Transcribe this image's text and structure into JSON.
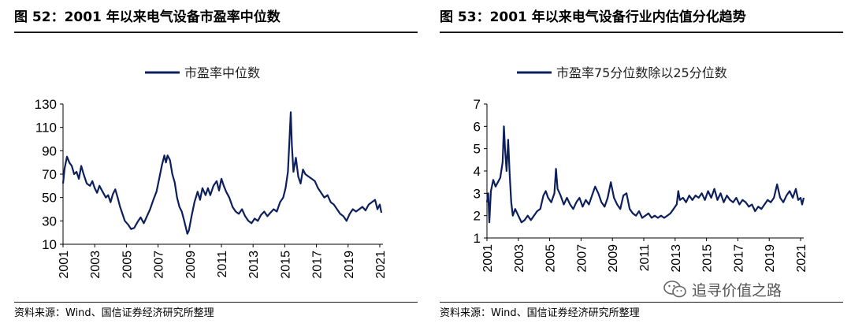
{
  "left": {
    "title": "图 52：2001 年以来电气设备市盈率中位数",
    "source": "资料来源：Wind、国信证券经济研究所整理",
    "chart_data": {
      "type": "line",
      "series": [
        {
          "name": "市盈率中位数",
          "color": "#0d1f5c",
          "points": [
            [
              2001.0,
              62
            ],
            [
              2001.1,
              75
            ],
            [
              2001.25,
              85
            ],
            [
              2001.4,
              80
            ],
            [
              2001.55,
              77
            ],
            [
              2001.7,
              70
            ],
            [
              2001.85,
              72
            ],
            [
              2002.0,
              66
            ],
            [
              2002.15,
              77
            ],
            [
              2002.3,
              70
            ],
            [
              2002.5,
              62
            ],
            [
              2002.7,
              60
            ],
            [
              2002.85,
              64
            ],
            [
              2003.0,
              58
            ],
            [
              2003.15,
              54
            ],
            [
              2003.3,
              60
            ],
            [
              2003.5,
              55
            ],
            [
              2003.7,
              50
            ],
            [
              2003.85,
              52
            ],
            [
              2004.0,
              46
            ],
            [
              2004.15,
              53
            ],
            [
              2004.3,
              57
            ],
            [
              2004.45,
              50
            ],
            [
              2004.6,
              42
            ],
            [
              2004.75,
              36
            ],
            [
              2004.9,
              30
            ],
            [
              2005.1,
              27
            ],
            [
              2005.3,
              23
            ],
            [
              2005.5,
              24
            ],
            [
              2005.7,
              29
            ],
            [
              2005.9,
              33
            ],
            [
              2006.1,
              28
            ],
            [
              2006.3,
              34
            ],
            [
              2006.5,
              40
            ],
            [
              2006.7,
              48
            ],
            [
              2006.9,
              55
            ],
            [
              2007.1,
              68
            ],
            [
              2007.25,
              78
            ],
            [
              2007.4,
              86
            ],
            [
              2007.5,
              80
            ],
            [
              2007.6,
              86
            ],
            [
              2007.75,
              82
            ],
            [
              2007.9,
              70
            ],
            [
              2008.05,
              63
            ],
            [
              2008.2,
              50
            ],
            [
              2008.35,
              42
            ],
            [
              2008.5,
              38
            ],
            [
              2008.65,
              30
            ],
            [
              2008.85,
              19
            ],
            [
              2008.95,
              22
            ],
            [
              2009.1,
              33
            ],
            [
              2009.3,
              46
            ],
            [
              2009.5,
              55
            ],
            [
              2009.65,
              48
            ],
            [
              2009.8,
              58
            ],
            [
              2010.0,
              52
            ],
            [
              2010.15,
              58
            ],
            [
              2010.3,
              52
            ],
            [
              2010.5,
              60
            ],
            [
              2010.7,
              64
            ],
            [
              2010.85,
              56
            ],
            [
              2011.0,
              66
            ],
            [
              2011.15,
              60
            ],
            [
              2011.3,
              55
            ],
            [
              2011.5,
              50
            ],
            [
              2011.7,
              42
            ],
            [
              2011.9,
              38
            ],
            [
              2012.1,
              36
            ],
            [
              2012.3,
              40
            ],
            [
              2012.5,
              34
            ],
            [
              2012.7,
              30
            ],
            [
              2012.9,
              28
            ],
            [
              2013.1,
              32
            ],
            [
              2013.3,
              30
            ],
            [
              2013.5,
              35
            ],
            [
              2013.7,
              38
            ],
            [
              2013.9,
              34
            ],
            [
              2014.1,
              37
            ],
            [
              2014.3,
              40
            ],
            [
              2014.5,
              38
            ],
            [
              2014.7,
              46
            ],
            [
              2014.9,
              50
            ],
            [
              2015.05,
              58
            ],
            [
              2015.2,
              72
            ],
            [
              2015.3,
              100
            ],
            [
              2015.38,
              123
            ],
            [
              2015.45,
              95
            ],
            [
              2015.55,
              72
            ],
            [
              2015.7,
              84
            ],
            [
              2015.85,
              68
            ],
            [
              2016.0,
              62
            ],
            [
              2016.15,
              74
            ],
            [
              2016.3,
              70
            ],
            [
              2016.5,
              68
            ],
            [
              2016.7,
              66
            ],
            [
              2016.9,
              64
            ],
            [
              2017.1,
              58
            ],
            [
              2017.3,
              54
            ],
            [
              2017.5,
              50
            ],
            [
              2017.7,
              52
            ],
            [
              2017.9,
              46
            ],
            [
              2018.1,
              44
            ],
            [
              2018.3,
              40
            ],
            [
              2018.5,
              36
            ],
            [
              2018.7,
              34
            ],
            [
              2018.9,
              30
            ],
            [
              2019.1,
              36
            ],
            [
              2019.3,
              40
            ],
            [
              2019.5,
              38
            ],
            [
              2019.7,
              40
            ],
            [
              2019.9,
              42
            ],
            [
              2020.1,
              39
            ],
            [
              2020.3,
              44
            ],
            [
              2020.5,
              46
            ],
            [
              2020.7,
              48
            ],
            [
              2020.85,
              40
            ],
            [
              2021.0,
              44
            ],
            [
              2021.1,
              37
            ]
          ]
        }
      ],
      "yticks": [
        "130",
        "110",
        "90",
        "70",
        "50",
        "30",
        "10"
      ],
      "ylim": [
        10,
        130
      ],
      "xticks": [
        "2001",
        "2003",
        "2005",
        "2007",
        "2009",
        "2011",
        "2013",
        "2015",
        "2017",
        "2019",
        "2021"
      ],
      "xlim": [
        2001,
        2021.2
      ],
      "legend": "top-center"
    }
  },
  "right": {
    "title": "图 53：2001 年以来电气设备行业内估值分化趋势",
    "source": "资料来源：Wind、国信证券经济研究所整理",
    "chart_data": {
      "type": "line",
      "series": [
        {
          "name": "市盈率75分位数除以25分位数",
          "color": "#0d1f5c",
          "points": [
            [
              2001.0,
              2.6
            ],
            [
              2001.08,
              3.0
            ],
            [
              2001.15,
              1.7
            ],
            [
              2001.25,
              3.1
            ],
            [
              2001.4,
              3.6
            ],
            [
              2001.55,
              3.3
            ],
            [
              2001.7,
              3.5
            ],
            [
              2001.85,
              3.7
            ],
            [
              2002.0,
              4.4
            ],
            [
              2002.08,
              6.0
            ],
            [
              2002.15,
              5.0
            ],
            [
              2002.25,
              4.0
            ],
            [
              2002.35,
              5.4
            ],
            [
              2002.45,
              3.8
            ],
            [
              2002.55,
              2.6
            ],
            [
              2002.65,
              2.0
            ],
            [
              2002.8,
              2.3
            ],
            [
              2003.0,
              2.0
            ],
            [
              2003.2,
              1.7
            ],
            [
              2003.4,
              1.8
            ],
            [
              2003.6,
              2.0
            ],
            [
              2003.8,
              1.8
            ],
            [
              2004.0,
              2.0
            ],
            [
              2004.2,
              2.2
            ],
            [
              2004.4,
              2.3
            ],
            [
              2004.6,
              2.9
            ],
            [
              2004.75,
              3.1
            ],
            [
              2004.9,
              2.8
            ],
            [
              2005.1,
              2.6
            ],
            [
              2005.3,
              3.0
            ],
            [
              2005.4,
              4.1
            ],
            [
              2005.5,
              3.2
            ],
            [
              2005.7,
              2.9
            ],
            [
              2005.9,
              2.5
            ],
            [
              2006.1,
              2.8
            ],
            [
              2006.3,
              2.5
            ],
            [
              2006.5,
              2.3
            ],
            [
              2006.7,
              2.6
            ],
            [
              2006.9,
              2.8
            ],
            [
              2007.1,
              2.4
            ],
            [
              2007.3,
              2.7
            ],
            [
              2007.5,
              2.5
            ],
            [
              2007.7,
              2.9
            ],
            [
              2007.9,
              3.3
            ],
            [
              2008.1,
              3.0
            ],
            [
              2008.3,
              2.6
            ],
            [
              2008.5,
              2.4
            ],
            [
              2008.7,
              2.8
            ],
            [
              2008.9,
              3.5
            ],
            [
              2009.1,
              2.8
            ],
            [
              2009.3,
              2.5
            ],
            [
              2009.5,
              2.3
            ],
            [
              2009.7,
              2.9
            ],
            [
              2009.9,
              3.0
            ],
            [
              2010.1,
              2.3
            ],
            [
              2010.3,
              2.1
            ],
            [
              2010.5,
              2.0
            ],
            [
              2010.7,
              2.2
            ],
            [
              2010.9,
              1.9
            ],
            [
              2011.1,
              2.0
            ],
            [
              2011.3,
              2.1
            ],
            [
              2011.5,
              1.9
            ],
            [
              2011.7,
              2.0
            ],
            [
              2011.9,
              1.9
            ],
            [
              2012.1,
              2.0
            ],
            [
              2012.3,
              1.9
            ],
            [
              2012.5,
              2.0
            ],
            [
              2012.7,
              2.1
            ],
            [
              2012.9,
              2.3
            ],
            [
              2013.1,
              2.5
            ],
            [
              2013.2,
              3.1
            ],
            [
              2013.3,
              2.7
            ],
            [
              2013.5,
              2.8
            ],
            [
              2013.7,
              2.6
            ],
            [
              2013.9,
              2.9
            ],
            [
              2014.1,
              2.7
            ],
            [
              2014.3,
              2.9
            ],
            [
              2014.5,
              2.8
            ],
            [
              2014.7,
              3.0
            ],
            [
              2014.9,
              2.7
            ],
            [
              2015.1,
              3.1
            ],
            [
              2015.3,
              2.8
            ],
            [
              2015.5,
              3.2
            ],
            [
              2015.7,
              2.7
            ],
            [
              2015.9,
              3.0
            ],
            [
              2016.1,
              2.6
            ],
            [
              2016.3,
              2.9
            ],
            [
              2016.5,
              2.7
            ],
            [
              2016.7,
              2.6
            ],
            [
              2016.9,
              2.8
            ],
            [
              2017.1,
              2.5
            ],
            [
              2017.3,
              2.7
            ],
            [
              2017.5,
              2.6
            ],
            [
              2017.7,
              2.4
            ],
            [
              2017.9,
              2.5
            ],
            [
              2018.1,
              2.2
            ],
            [
              2018.3,
              2.4
            ],
            [
              2018.5,
              2.3
            ],
            [
              2018.7,
              2.5
            ],
            [
              2018.9,
              2.7
            ],
            [
              2019.1,
              2.6
            ],
            [
              2019.3,
              2.8
            ],
            [
              2019.5,
              3.4
            ],
            [
              2019.7,
              2.8
            ],
            [
              2019.9,
              2.6
            ],
            [
              2020.1,
              2.9
            ],
            [
              2020.3,
              3.1
            ],
            [
              2020.5,
              2.8
            ],
            [
              2020.7,
              3.2
            ],
            [
              2020.85,
              2.7
            ],
            [
              2021.0,
              2.8
            ],
            [
              2021.1,
              2.5
            ],
            [
              2021.2,
              2.8
            ]
          ]
        }
      ],
      "yticks": [
        "7",
        "6",
        "5",
        "4",
        "3",
        "2",
        "1"
      ],
      "ylim": [
        1,
        7
      ],
      "xticks": [
        "2001",
        "2003",
        "2005",
        "2007",
        "2009",
        "2011",
        "2013",
        "2015",
        "2017",
        "2019",
        "2021"
      ],
      "xlim": [
        2001,
        2021.2
      ],
      "legend": "top-center"
    }
  },
  "watermark": {
    "text": "追寻价值之路",
    "icon": "wechat-icon"
  }
}
